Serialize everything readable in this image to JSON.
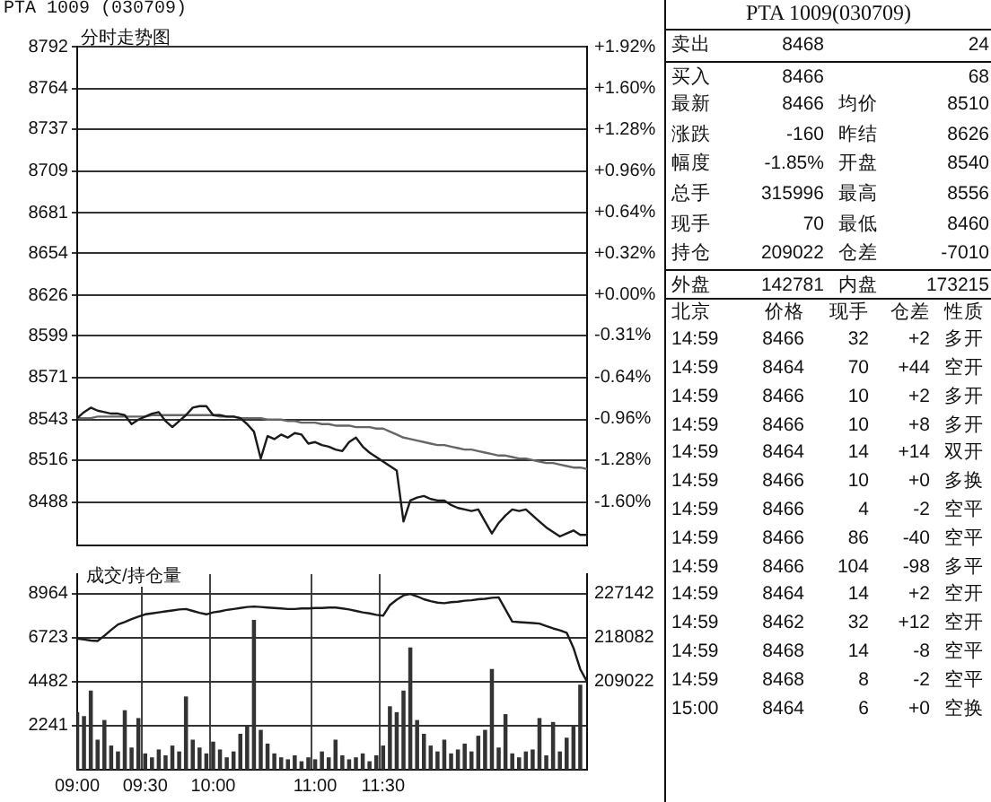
{
  "chart_data": [
    {
      "type": "line",
      "title": "PTA 1009 (030709)",
      "subtitle": "分时走势图",
      "categories": [
        null,
        null,
        null,
        null,
        null,
        null,
        null,
        null,
        null,
        null,
        null,
        null,
        null,
        null,
        null,
        null,
        null,
        null,
        null,
        null,
        null,
        null,
        null,
        null,
        null,
        null,
        null,
        null,
        null,
        null,
        null,
        null,
        null,
        null,
        null,
        null,
        null,
        null,
        null,
        null,
        null,
        null,
        null,
        null,
        null,
        null,
        null,
        null,
        null,
        null,
        null,
        null,
        null,
        null,
        null,
        null,
        null,
        null,
        null,
        null,
        null,
        null,
        null,
        null,
        null,
        null,
        null,
        null,
        null,
        null,
        null,
        null,
        null,
        null,
        null,
        null
      ],
      "ylim": [
        8459,
        8792
      ],
      "yticks": [
        8488,
        8516,
        8543,
        8571,
        8599,
        8626,
        8654,
        8681,
        8709,
        8737,
        8764,
        8792
      ],
      "y2lim": [
        -1.94,
        1.92
      ],
      "y2ticks": [
        {
          "value": -1.6,
          "label": "-1.60%"
        },
        {
          "value": -1.28,
          "label": "-1.28%"
        },
        {
          "value": -0.96,
          "label": "-0.96%"
        },
        {
          "value": -0.64,
          "label": "-0.64%"
        },
        {
          "value": -0.31,
          "label": "-0.31%"
        },
        {
          "value": 0,
          "label": "+0.00%"
        },
        {
          "value": 0.32,
          "label": "+0.32%"
        },
        {
          "value": 0.64,
          "label": "+0.64%"
        },
        {
          "value": 0.96,
          "label": "+0.96%"
        },
        {
          "value": 1.28,
          "label": "+1.28%"
        },
        {
          "value": 1.6,
          "label": "+1.60%"
        },
        {
          "value": 1.92,
          "label": "+1.92%"
        }
      ],
      "grid": true,
      "legend": false,
      "tick_labels": "y",
      "series": [
        {
          "type": "line",
          "color": "#1a1a1a",
          "values": [
            8544,
            8548,
            8551,
            8549,
            8548,
            8547,
            8547,
            8546,
            8540,
            8543,
            8545,
            8547,
            8548,
            8542,
            8538,
            8542,
            8546,
            8551,
            8552,
            8552,
            8546,
            8546,
            8545,
            8545,
            8544,
            8540,
            8535,
            8517,
            8532,
            8530,
            8533,
            8531,
            8534,
            8533,
            8527,
            8528,
            8526,
            8525,
            8523,
            8522,
            8528,
            8531,
            8525,
            8521,
            8518,
            8515,
            8512,
            8509,
            8475,
            8489,
            8491,
            8492,
            8490,
            8489,
            8489,
            8486,
            8484,
            8483,
            8482,
            8483,
            8475,
            8467,
            8474,
            8479,
            8483,
            8482,
            8483,
            8479,
            8475,
            8471,
            8468,
            8465,
            8467,
            8469,
            8466,
            8466
          ]
        },
        {
          "type": "line",
          "color": "#666666",
          "values": [
            8544,
            8544,
            8544,
            8545,
            8545,
            8545,
            8545,
            8545,
            8545,
            8545,
            8545,
            8546,
            8546,
            8546,
            8546,
            8546,
            8546,
            8546,
            8546,
            8546,
            8546,
            8545,
            8545,
            8545,
            8544,
            8544,
            8544,
            8544,
            8543,
            8543,
            8543,
            8542,
            8542,
            8541,
            8541,
            8541,
            8540,
            8540,
            8539,
            8539,
            8539,
            8538,
            8538,
            8538,
            8537,
            8537,
            8535,
            8533,
            8531,
            8530,
            8529,
            8528,
            8527,
            8526,
            8526,
            8525,
            8524,
            8523,
            8523,
            8522,
            8521,
            8520,
            8519,
            8519,
            8518,
            8517,
            8517,
            8516,
            8515,
            8514,
            8514,
            8513,
            8512,
            8511,
            8511,
            8510
          ]
        }
      ]
    },
    {
      "type": "bar",
      "title": "成交/持仓量",
      "categories": [
        "09:00",
        null,
        null,
        null,
        null,
        null,
        null,
        null,
        null,
        null,
        "09:30",
        null,
        null,
        null,
        null,
        null,
        null,
        null,
        null,
        null,
        "10:00",
        null,
        null,
        null,
        null,
        null,
        null,
        null,
        null,
        null,
        null,
        null,
        null,
        null,
        null,
        "11:00",
        null,
        null,
        null,
        null,
        null,
        null,
        null,
        null,
        null,
        "11:30",
        null,
        null,
        null,
        null,
        null,
        null,
        null,
        null,
        null,
        null,
        null,
        null,
        null,
        null,
        null,
        null,
        null,
        null,
        null,
        null,
        null,
        null,
        null,
        null,
        null,
        null,
        null,
        null,
        null,
        null
      ],
      "ylim": [
        0,
        9960
      ],
      "yticks": [
        2241,
        4482,
        6723,
        8964
      ],
      "y2lim": [
        190902,
        231174
      ],
      "y2ticks": [
        209022,
        218082,
        227142
      ],
      "grid": true,
      "legend": false,
      "series": [
        {
          "type": "bar",
          "color": "#333333",
          "values": [
            2900,
            2700,
            4000,
            1500,
            2500,
            1200,
            900,
            3000,
            1100,
            2600,
            800,
            600,
            1000,
            700,
            1200,
            900,
            3700,
            1500,
            1100,
            800,
            1400,
            1000,
            600,
            900,
            1800,
            2200,
            7600,
            2000,
            1300,
            800,
            600,
            500,
            700,
            400,
            600,
            500,
            900,
            600,
            1500,
            700,
            500,
            600,
            800,
            400,
            700,
            1200,
            3200,
            2900,
            4000,
            6200,
            2500,
            1800,
            1200,
            900,
            1500,
            800,
            1000,
            1300,
            900,
            1700,
            2000,
            5100,
            1100,
            2800,
            800,
            600,
            900,
            1000,
            2600,
            700,
            2400,
            900,
            1600,
            2200,
            4300,
            null
          ]
        },
        {
          "type": "line",
          "axis": "y2",
          "color": "#1a1a1a",
          "values": [
            217900,
            217700,
            217500,
            217400,
            218500,
            219700,
            220800,
            221300,
            221900,
            222400,
            222900,
            223100,
            223300,
            223500,
            223700,
            223900,
            224000,
            223600,
            223200,
            222900,
            223300,
            223500,
            223800,
            224000,
            224200,
            224400,
            224500,
            224400,
            224300,
            224200,
            224100,
            224000,
            224000,
            224100,
            224100,
            224200,
            224200,
            224300,
            224300,
            224100,
            223900,
            223600,
            223300,
            223100,
            222800,
            222600,
            224800,
            225900,
            226800,
            227100,
            226600,
            226000,
            225600,
            225300,
            225200,
            225400,
            225500,
            225700,
            225800,
            226000,
            226100,
            226300,
            226400,
            223900,
            221400,
            221300,
            221200,
            221100,
            221000,
            220500,
            220000,
            219600,
            219100,
            216000,
            211600,
            209022
          ]
        }
      ]
    },
    {
      "type": "other",
      "title": "PTA 1009(030709)",
      "annotations": [
        "卖出",
        "8468",
        "24",
        "买入",
        "8466",
        "68",
        "最新",
        "8466",
        "均价",
        "8510",
        "涨跌",
        "-160",
        "昨结",
        "8626",
        "幅度",
        "-1.85%",
        "开盘",
        "8540",
        "总手",
        "315996",
        "最高",
        "8556",
        "现手",
        "70",
        "最低",
        "8460",
        "持仓",
        "209022",
        "仓差",
        "-7010",
        "外盘",
        "142781",
        "内盘",
        "173215",
        "北京",
        "价格",
        "现手",
        "仓差",
        "性质",
        "14:59",
        "8466",
        "32",
        "+2",
        "多开",
        "14:59",
        "8464",
        "70",
        "+44",
        "空开",
        "14:59",
        "8466",
        "10",
        "+2",
        "多开",
        "14:59",
        "8466",
        "10",
        "+8",
        "多开",
        "14:59",
        "8464",
        "14",
        "+14",
        "双开",
        "14:59",
        "8466",
        "10",
        "+0",
        "多换",
        "14:59",
        "8466",
        "4",
        "-2",
        "空平",
        "14:59",
        "8466",
        "86",
        "-40",
        "空平",
        "14:59",
        "8466",
        "104",
        "-98",
        "多平",
        "14:59",
        "8464",
        "14",
        "+2",
        "空开",
        "14:59",
        "8462",
        "32",
        "+12",
        "空开",
        "14:59",
        "8468",
        "14",
        "-8",
        "空平",
        "14:59",
        "8468",
        "8",
        "-2",
        "空平",
        "15:00",
        "8464",
        "6",
        "+0",
        "空换"
      ]
    }
  ]
}
